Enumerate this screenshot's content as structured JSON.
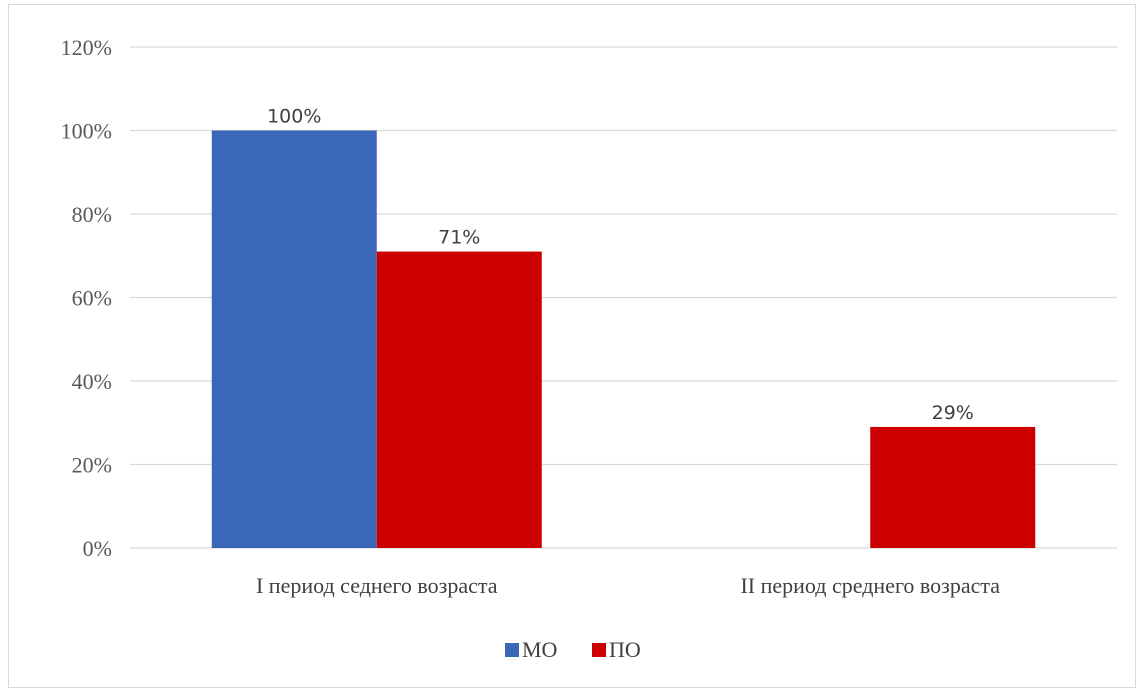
{
  "chart_data": {
    "type": "bar",
    "categories": [
      "I период седнего возраста",
      "II период среднего возраста"
    ],
    "series": [
      {
        "name": "МО",
        "values": [
          100,
          0
        ],
        "labels": [
          "100%",
          null
        ],
        "color": "#3a67b8"
      },
      {
        "name": "ПО",
        "values": [
          71,
          29
        ],
        "labels": [
          "71%",
          "29%"
        ],
        "color": "#cc0000"
      }
    ],
    "ylim": [
      0,
      120
    ],
    "yticks": [
      0,
      20,
      40,
      60,
      80,
      100,
      120
    ],
    "ytick_labels": [
      "0%",
      "20%",
      "40%",
      "60%",
      "80%",
      "100%",
      "120%"
    ],
    "grid": true,
    "gridline_color": "#d9d9d9",
    "legend_position": "bottom",
    "title": "",
    "xlabel": "",
    "ylabel": ""
  }
}
